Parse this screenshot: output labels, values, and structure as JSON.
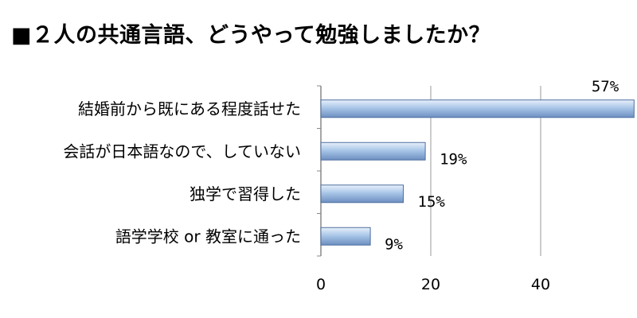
{
  "title": "■２人の共通言語、どうやって勉強しましたか？",
  "chart_data": {
    "type": "bar",
    "orientation": "horizontal",
    "title": "■２人の共通言語、どうやって勉強しましたか？",
    "categories": [
      "結婚前から既にある程度話せた",
      "会話が日本語なので、していない",
      "独学で習得した",
      "語学学校 or 教室に通った"
    ],
    "values": [
      57,
      19,
      15,
      9
    ],
    "value_labels": [
      "57%",
      "19%",
      "15%",
      "9%"
    ],
    "xlim": [
      0,
      57
    ],
    "x_ticks": [
      0,
      20,
      40
    ],
    "grid": true,
    "colors": {
      "bar_light": "#e8f1fb",
      "bar_mid": "#a9c6e8",
      "bar_dark": "#6d8fc0",
      "bar_stroke": "#4f6f9f",
      "grid": "#999999"
    }
  }
}
